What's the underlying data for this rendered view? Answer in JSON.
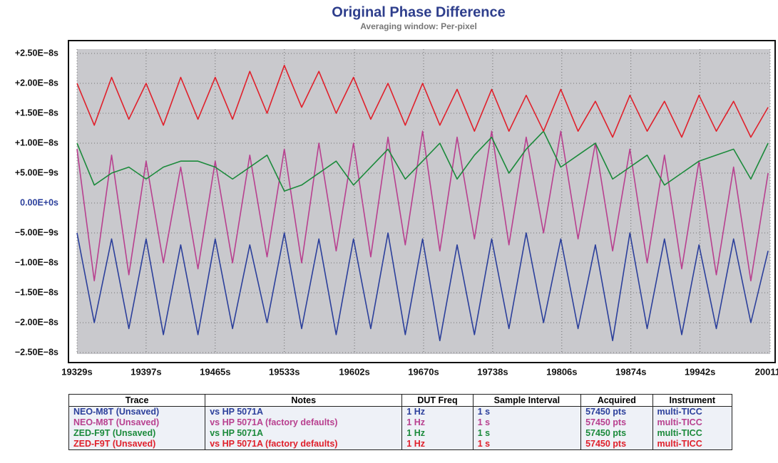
{
  "chart_data": {
    "type": "line",
    "title": "Original Phase Difference",
    "subtitle": "Averaging window: Per-pixel",
    "grid": true,
    "xlim": [
      19329,
      20011
    ],
    "ylim": [
      -2.5e-08,
      2.5e-08
    ],
    "xticks": [
      {
        "value": 19329,
        "label": "19329s"
      },
      {
        "value": 19397,
        "label": "19397s"
      },
      {
        "value": 19465,
        "label": "19465s"
      },
      {
        "value": 19533,
        "label": "19533s"
      },
      {
        "value": 19602,
        "label": "19602s"
      },
      {
        "value": 19670,
        "label": "19670s"
      },
      {
        "value": 19738,
        "label": "19738s"
      },
      {
        "value": 19806,
        "label": "19806s"
      },
      {
        "value": 19874,
        "label": "19874s"
      },
      {
        "value": 19942,
        "label": "19942s"
      },
      {
        "value": 20011,
        "label": "20011s"
      }
    ],
    "yticks": [
      {
        "value": 2.5e-08,
        "label": "+2.50E−8s"
      },
      {
        "value": 2e-08,
        "label": "+2.00E−8s"
      },
      {
        "value": 1.5e-08,
        "label": "+1.50E−8s"
      },
      {
        "value": 1e-08,
        "label": "+1.00E−8s"
      },
      {
        "value": 5e-09,
        "label": "+5.00E−9s"
      },
      {
        "value": 0,
        "label": "0.00E+0s"
      },
      {
        "value": -5e-09,
        "label": "−5.00E−9s"
      },
      {
        "value": -1e-08,
        "label": "−1.00E−8s"
      },
      {
        "value": -1.5e-08,
        "label": "−1.50E−8s"
      },
      {
        "value": -2e-08,
        "label": "−2.00E−8s"
      },
      {
        "value": -2.5e-08,
        "label": "−2.50E−8s"
      }
    ],
    "x": [
      19329,
      19346,
      19363,
      19380,
      19397,
      19414,
      19431,
      19448,
      19465,
      19482,
      19499,
      19516,
      19533,
      19550,
      19567,
      19584,
      19601,
      19618,
      19635,
      19652,
      19669,
      19686,
      19703,
      19720,
      19737,
      19754,
      19771,
      19788,
      19805,
      19822,
      19839,
      19856,
      19873,
      19890,
      19907,
      19924,
      19941,
      19958,
      19975,
      19992,
      20009
    ],
    "series": [
      {
        "name": "NEO-M8T (Unsaved)",
        "color": "#2b3f9b",
        "values": [
          -5e-09,
          -2e-08,
          -6e-09,
          -2.1e-08,
          -6e-09,
          -2.2e-08,
          -7e-09,
          -2.2e-08,
          -6e-09,
          -2.1e-08,
          -7e-09,
          -2e-08,
          -5e-09,
          -2.1e-08,
          -6e-09,
          -2.2e-08,
          -6e-09,
          -2.1e-08,
          -5e-09,
          -2.2e-08,
          -6e-09,
          -2.3e-08,
          -7e-09,
          -2.2e-08,
          -6e-09,
          -2.1e-08,
          -5e-09,
          -2e-08,
          -6e-09,
          -2.1e-08,
          -7e-09,
          -2.3e-08,
          -5e-09,
          -2.1e-08,
          -6e-09,
          -2.2e-08,
          -7e-09,
          -2.1e-08,
          -6e-09,
          -2e-08,
          -8e-09
        ]
      },
      {
        "name": "NEO-M8T (Unsaved)",
        "color": "#b8408f",
        "values": [
          9e-09,
          -1.3e-08,
          8e-09,
          -1.2e-08,
          7e-09,
          -1e-08,
          6e-09,
          -1.1e-08,
          7e-09,
          -1e-08,
          8e-09,
          -9e-09,
          9e-09,
          -1e-08,
          1e-08,
          -8e-09,
          1e-08,
          -9e-09,
          1.1e-08,
          -7e-09,
          1.2e-08,
          -8e-09,
          1.1e-08,
          -6e-09,
          1.2e-08,
          -7e-09,
          1.1e-08,
          -5e-09,
          1.2e-08,
          -6e-09,
          1e-08,
          -8e-09,
          9e-09,
          -1e-08,
          8e-09,
          -1.1e-08,
          7e-09,
          -1.2e-08,
          6e-09,
          -1.3e-08,
          5e-09
        ]
      },
      {
        "name": "ZED-F9T (Unsaved)",
        "color": "#1b8a3b",
        "values": [
          1e-08,
          3e-09,
          5e-09,
          6e-09,
          4e-09,
          6e-09,
          7e-09,
          7e-09,
          6e-09,
          4e-09,
          6e-09,
          8e-09,
          2e-09,
          3e-09,
          5e-09,
          7e-09,
          3e-09,
          6e-09,
          9e-09,
          4e-09,
          7e-09,
          1e-08,
          4e-09,
          8e-09,
          1.1e-08,
          5e-09,
          9e-09,
          1.2e-08,
          6e-09,
          8e-09,
          1e-08,
          4e-09,
          6e-09,
          8e-09,
          3e-09,
          5e-09,
          7e-09,
          8e-09,
          9e-09,
          4e-09,
          1e-08
        ]
      },
      {
        "name": "ZED-F9T (Unsaved)",
        "color": "#e0202b",
        "values": [
          2e-08,
          1.3e-08,
          2.1e-08,
          1.4e-08,
          2e-08,
          1.3e-08,
          2.1e-08,
          1.4e-08,
          2.1e-08,
          1.4e-08,
          2.2e-08,
          1.5e-08,
          2.3e-08,
          1.6e-08,
          2.2e-08,
          1.5e-08,
          2.1e-08,
          1.4e-08,
          2e-08,
          1.3e-08,
          2e-08,
          1.3e-08,
          1.9e-08,
          1.2e-08,
          1.9e-08,
          1.2e-08,
          1.8e-08,
          1.2e-08,
          1.9e-08,
          1.2e-08,
          1.7e-08,
          1.1e-08,
          1.8e-08,
          1.2e-08,
          1.7e-08,
          1.1e-08,
          1.8e-08,
          1.2e-08,
          1.7e-08,
          1.1e-08,
          1.6e-08
        ]
      }
    ],
    "legend_table": {
      "columns": [
        "Trace",
        "Notes",
        "DUT Freq",
        "Sample Interval",
        "Acquired",
        "Instrument"
      ],
      "rows": [
        [
          "vs HP 5071A",
          "1 Hz",
          "1 s",
          "57450 pts",
          "multi-TICC"
        ],
        [
          "vs HP 5071A (factory defaults)",
          "1 Hz",
          "1 s",
          "57450 pts",
          "multi-TICC"
        ],
        [
          "vs HP 5071A",
          "1 Hz",
          "1 s",
          "57450 pts",
          "multi-TICC"
        ],
        [
          "vs HP 5071A (factory defaults)",
          "1 Hz",
          "1 s",
          "57450 pts",
          "multi-TICC"
        ]
      ]
    }
  }
}
